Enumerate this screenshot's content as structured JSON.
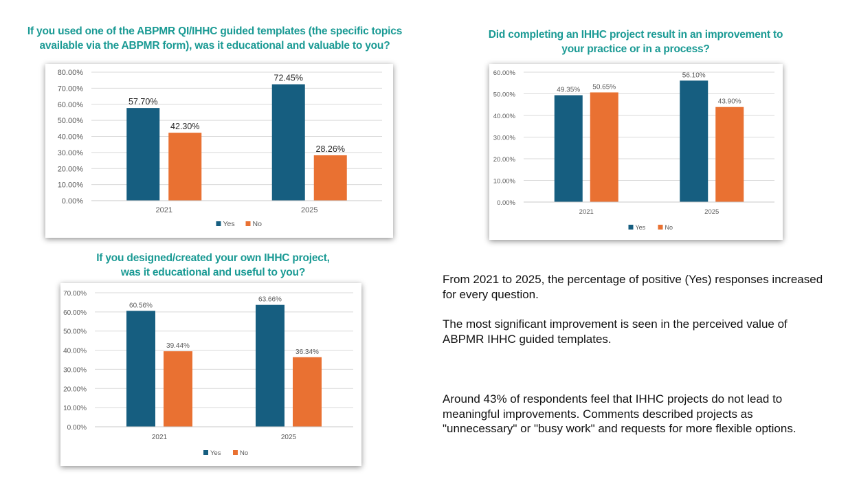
{
  "colors": {
    "yes": "#165e80",
    "no": "#e97132",
    "title": "#1a9a94",
    "grid": "#d9d9d9",
    "tick_text": "#595959",
    "label_text": "#404040"
  },
  "chart_data": [
    {
      "type": "bar",
      "title": "If you used one of the ABPMR QI/IHHC guided templates (the specific topics available via the ABPMR form), was it educational and valuable to you?",
      "title_lines": [
        "If you used one of the ABPMR QI/IHHC guided templates (the specific topics",
        "available via the ABPMR form), was it educational and valuable to you?"
      ],
      "categories": [
        "2021",
        "2025"
      ],
      "series": [
        {
          "name": "Yes",
          "values": [
            57.7,
            72.45
          ],
          "labels": [
            "57.70%",
            "72.45%"
          ]
        },
        {
          "name": "No",
          "values": [
            42.3,
            28.26
          ],
          "labels": [
            "42.30%",
            "28.26%"
          ]
        }
      ],
      "ylim": [
        0,
        80
      ],
      "yticks": [
        "0.00%",
        "10.00%",
        "20.00%",
        "30.00%",
        "40.00%",
        "50.00%",
        "60.00%",
        "70.00%",
        "80.00%"
      ],
      "xlabel": "",
      "ylabel": "",
      "grid": true,
      "legend": "bottom"
    },
    {
      "type": "bar",
      "title": "Did completing an IHHC project result in an improvement to your practice or in a process?",
      "title_lines": [
        "Did completing an IHHC project result in an improvement to",
        "your practice or in a process?"
      ],
      "categories": [
        "2021",
        "2025"
      ],
      "series": [
        {
          "name": "Yes",
          "values": [
            49.35,
            56.1
          ],
          "labels": [
            "49.35%",
            "56.10%"
          ]
        },
        {
          "name": "No",
          "values": [
            50.65,
            43.9
          ],
          "labels": [
            "50.65%",
            "43.90%"
          ]
        }
      ],
      "ylim": [
        0,
        60
      ],
      "yticks": [
        "0.00%",
        "10.00%",
        "20.00%",
        "30.00%",
        "40.00%",
        "50.00%",
        "60.00%"
      ],
      "xlabel": "",
      "ylabel": "",
      "grid": true,
      "legend": "bottom"
    },
    {
      "type": "bar",
      "title": "If you designed/created your own IHHC project, was it educational and useful to you?",
      "title_lines": [
        "If you designed/created your own IHHC project,",
        "was it educational and useful to you?"
      ],
      "categories": [
        "2021",
        "2025"
      ],
      "series": [
        {
          "name": "Yes",
          "values": [
            60.56,
            63.66
          ],
          "labels": [
            "60.56%",
            "63.66%"
          ]
        },
        {
          "name": "No",
          "values": [
            39.44,
            36.34
          ],
          "labels": [
            "39.44%",
            "36.34%"
          ]
        }
      ],
      "ylim": [
        0,
        70
      ],
      "yticks": [
        "0.00%",
        "10.00%",
        "20.00%",
        "30.00%",
        "40.00%",
        "50.00%",
        "60.00%",
        "70.00%"
      ],
      "xlabel": "",
      "ylabel": "",
      "grid": true,
      "legend": "bottom"
    }
  ],
  "insights": [
    "From 2021 to 2025, the percentage of positive (Yes) responses increased for every question.",
    "The most significant improvement is seen in the perceived value of ABPMR IHHC guided templates.",
    "Around 43% of respondents feel that IHHC projects do not lead to meaningful improvements. Comments described projects as \"unnecessary\" or \"busy work\" and requests for more flexible options."
  ]
}
